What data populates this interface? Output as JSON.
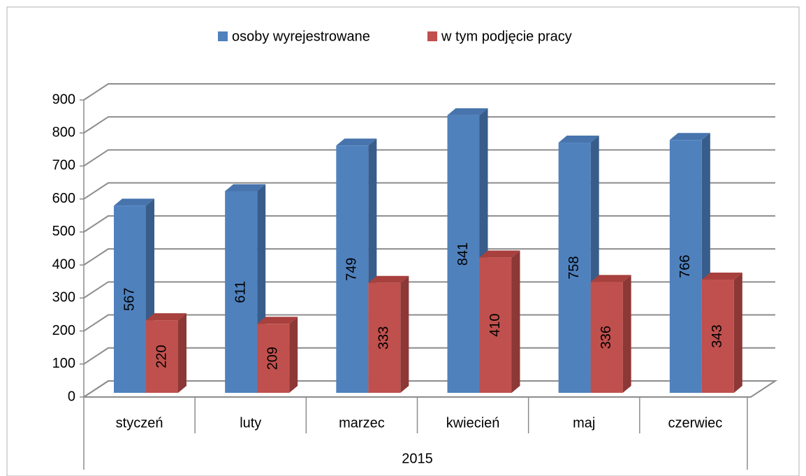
{
  "chart_data": {
    "type": "bar3d",
    "categories": [
      "styczeń",
      "luty",
      "marzec",
      "kwiecień",
      "maj",
      "czerwiec"
    ],
    "group_label": "2015",
    "series": [
      {
        "name": "osoby wyrejestrowane",
        "color": "#4f81bd",
        "side_color": "#385d8a",
        "top_color": "#4774ad",
        "values": [
          567,
          611,
          749,
          841,
          758,
          766
        ]
      },
      {
        "name": "w tym podjęcie pracy",
        "color": "#c0504d",
        "side_color": "#8c3836",
        "top_color": "#a8403d",
        "values": [
          220,
          209,
          333,
          410,
          336,
          343
        ]
      }
    ],
    "ylim": [
      0,
      900
    ],
    "yticks": [
      0,
      100,
      200,
      300,
      400,
      500,
      600,
      700,
      800,
      900
    ],
    "grid": true,
    "legend": "top"
  }
}
